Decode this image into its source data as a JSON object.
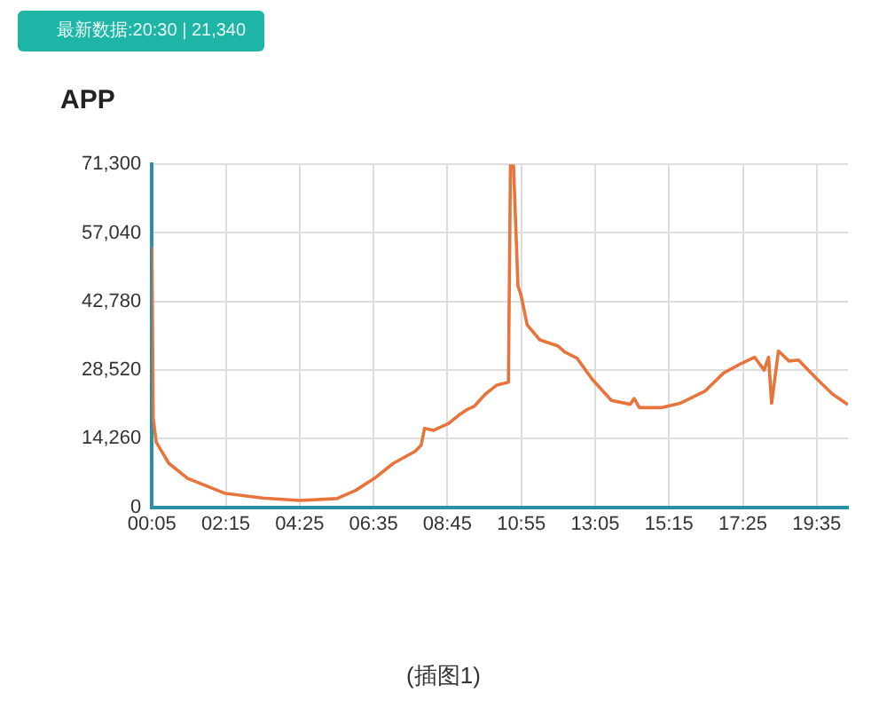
{
  "chart_data": {
    "type": "line",
    "title": "APP",
    "annotations": [
      "最新数据:20:30 | 21,340",
      "(插图1)"
    ],
    "x": [
      0.083,
      0.12,
      0.21,
      0.58,
      1.13,
      2.22,
      3.32,
      4.42,
      5.51,
      6.06,
      6.61,
      7.16,
      7.8,
      7.98,
      8.08,
      8.35,
      8.8,
      9.08,
      9.35,
      9.54,
      9.86,
      10.2,
      10.54,
      10.6,
      10.69,
      10.82,
      10.91,
      11.09,
      11.46,
      12.0,
      12.19,
      12.55,
      13.0,
      13.56,
      14.11,
      14.23,
      14.38,
      15.02,
      15.57,
      16.3,
      16.85,
      17.4,
      17.76,
      18.04,
      18.17,
      18.26,
      18.46,
      18.77,
      19.05,
      19.6,
      20.05,
      20.5
    ],
    "series": [
      {
        "color": "#e8743b",
        "values": [
          54100,
          18500,
          13500,
          9100,
          6000,
          2900,
          1900,
          1400,
          1800,
          3500,
          6000,
          9100,
          11600,
          12900,
          16400,
          16000,
          17500,
          19100,
          20400,
          21000,
          23500,
          25400,
          26000,
          71300,
          71000,
          46000,
          44100,
          37900,
          34800,
          33500,
          32300,
          31000,
          26600,
          22200,
          21400,
          22600,
          20700,
          20700,
          21600,
          24100,
          27900,
          30000,
          31200,
          28500,
          31200,
          21600,
          32500,
          30400,
          30600,
          26600,
          23500,
          21340
        ]
      }
    ],
    "xlim": [
      0.083,
      20.5
    ],
    "xticks": [
      {
        "value": 0.083,
        "label": "00:05"
      },
      {
        "value": 2.25,
        "label": "02:15"
      },
      {
        "value": 4.417,
        "label": "04:25"
      },
      {
        "value": 6.583,
        "label": "06:35"
      },
      {
        "value": 8.75,
        "label": "08:45"
      },
      {
        "value": 10.917,
        "label": "10:55"
      },
      {
        "value": 13.083,
        "label": "13:05"
      },
      {
        "value": 15.25,
        "label": "15:15"
      },
      {
        "value": 17.417,
        "label": "17:25"
      },
      {
        "value": 19.583,
        "label": "19:35"
      }
    ],
    "ylim": [
      0,
      71300
    ],
    "yticks": [
      0,
      {
        "value": 14260,
        "label": "14,260"
      },
      {
        "value": 28520,
        "label": "28,520"
      },
      {
        "value": 42780,
        "label": "42,780"
      },
      {
        "value": 57040,
        "label": "57,040"
      },
      {
        "value": 71300,
        "label": "71,300"
      }
    ],
    "grid": true,
    "legend": false,
    "marker": "none",
    "line_style": "solid"
  }
}
